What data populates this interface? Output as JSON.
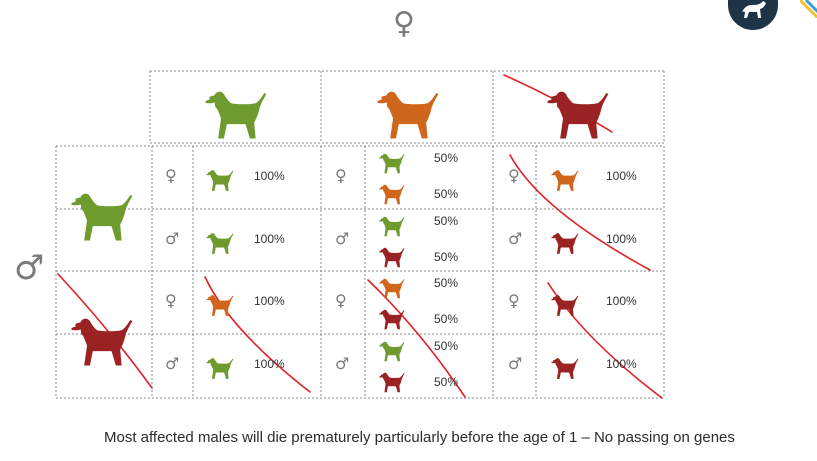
{
  "symbols": {
    "female": "♀",
    "male": "♂"
  },
  "colors": {
    "green": "#6e9a2e",
    "orange": "#d0661b",
    "red": "#9b2222",
    "annotation": "#e01f26",
    "logo_bg": "#1f3447"
  },
  "header_dogs": [
    "green",
    "orange",
    "red"
  ],
  "header_crossed": [
    false,
    false,
    true
  ],
  "row_parents": [
    {
      "dog": "green",
      "crossed": false
    },
    {
      "dog": "red",
      "crossed": true
    }
  ],
  "cells": [
    [
      {
        "sex": "♀",
        "dogs": [
          "green"
        ],
        "pcts": [
          "100%"
        ]
      },
      {
        "sex": "♀",
        "dogs": [
          "green",
          "orange"
        ],
        "pcts": [
          "50%",
          "50%"
        ]
      },
      {
        "sex": "♀",
        "dogs": [
          "orange"
        ],
        "pcts": [
          "100%"
        ]
      }
    ],
    [
      {
        "sex": "♂",
        "dogs": [
          "green"
        ],
        "pcts": [
          "100%"
        ]
      },
      {
        "sex": "♂",
        "dogs": [
          "green",
          "red"
        ],
        "pcts": [
          "50%",
          "50%"
        ]
      },
      {
        "sex": "♂",
        "dogs": [
          "red"
        ],
        "pcts": [
          "100%"
        ]
      }
    ],
    [
      {
        "sex": "♀",
        "dogs": [
          "orange"
        ],
        "pcts": [
          "100%"
        ]
      },
      {
        "sex": "♀",
        "dogs": [
          "orange",
          "red"
        ],
        "pcts": [
          "50%",
          "50%"
        ]
      },
      {
        "sex": "♀",
        "dogs": [
          "red"
        ],
        "pcts": [
          "100%"
        ]
      }
    ],
    [
      {
        "sex": "♂",
        "dogs": [
          "green"
        ],
        "pcts": [
          "100%"
        ]
      },
      {
        "sex": "♂",
        "dogs": [
          "green",
          "red"
        ],
        "pcts": [
          "50%",
          "50%"
        ]
      },
      {
        "sex": "♂",
        "dogs": [
          "red"
        ],
        "pcts": [
          "100%"
        ]
      }
    ]
  ],
  "footer": "Most affected males will die prematurely particularly before the age of 1 – No passing on genes"
}
